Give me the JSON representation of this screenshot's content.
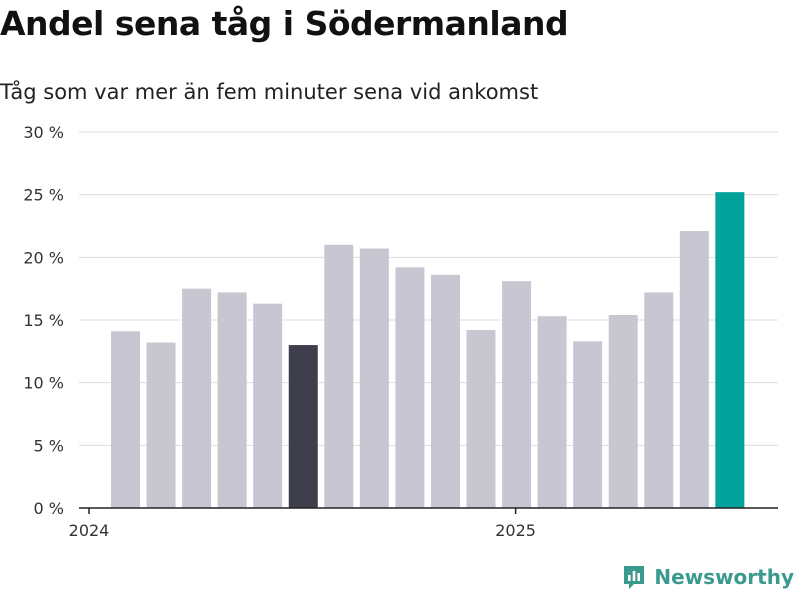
{
  "title": "Andel sena tåg i Södermanland",
  "subtitle": "Tåg som var mer än fem minuter sena vid ankomst",
  "brand": {
    "name": "Newsworthy",
    "color": "#3b9a8e",
    "icon": "chat-bar-chart-icon"
  },
  "chart_data": {
    "type": "bar",
    "title": "Andel sena tåg i Södermanland",
    "subtitle": "Tåg som var mer än fem minuter sena vid ankomst",
    "xlabel": "",
    "ylabel": "",
    "ylim": [
      0,
      30
    ],
    "yticks": [
      0,
      5,
      10,
      15,
      20,
      25,
      30
    ],
    "ytick_labels": [
      "0 %",
      "5 %",
      "10 %",
      "15 %",
      "20 %",
      "25 %",
      "30 %"
    ],
    "xtick_labels": [
      {
        "label": "2024",
        "index": 0
      },
      {
        "label": "2025",
        "index": 12
      }
    ],
    "values": [
      14.1,
      13.2,
      17.5,
      17.2,
      16.3,
      13.0,
      21.0,
      20.7,
      19.2,
      18.6,
      14.2,
      18.1,
      15.3,
      13.3,
      15.4,
      17.2,
      22.1,
      25.2
    ],
    "highlights": {
      "5": "dark",
      "17": "accent"
    },
    "grid": true,
    "legend": "none",
    "colors": {
      "default": "#c8c7d1",
      "dark": "#3f3e4d",
      "accent": "#00a29a",
      "grid": "#dddddd",
      "axis": "#222222"
    }
  }
}
